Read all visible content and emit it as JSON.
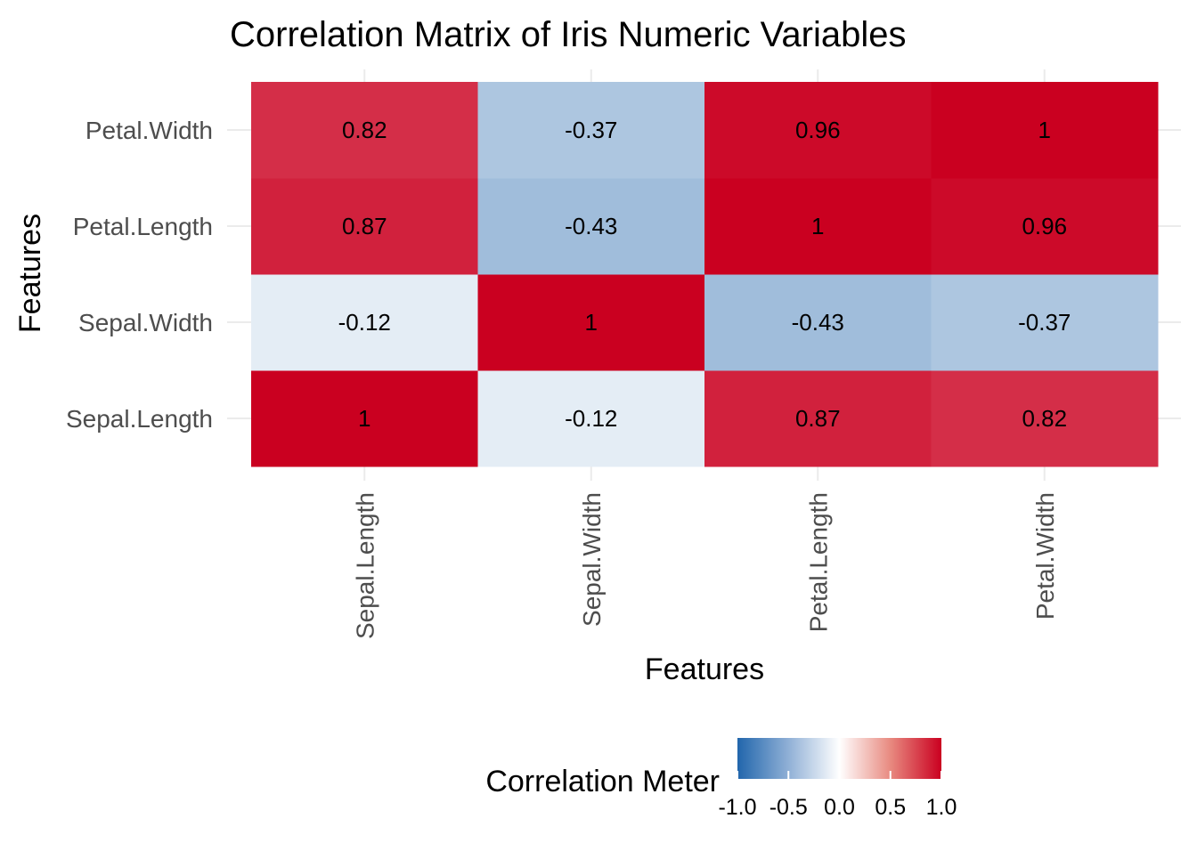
{
  "chart_data": {
    "type": "heatmap",
    "title": "Correlation Matrix of Iris Numeric Variables",
    "xlabel": "Features",
    "ylabel": "Features",
    "x_categories": [
      "Sepal.Length",
      "Sepal.Width",
      "Petal.Length",
      "Petal.Width"
    ],
    "y_categories": [
      "Sepal.Length",
      "Sepal.Width",
      "Petal.Length",
      "Petal.Width"
    ],
    "matrix": [
      [
        1,
        -0.12,
        0.87,
        0.82
      ],
      [
        -0.12,
        1,
        -0.43,
        -0.37
      ],
      [
        0.87,
        -0.43,
        1,
        0.96
      ],
      [
        0.82,
        -0.37,
        0.96,
        1
      ]
    ],
    "cell_labels": [
      [
        "1",
        "-0.12",
        "0.87",
        "0.82"
      ],
      [
        "-0.12",
        "1",
        "-0.43",
        "-0.37"
      ],
      [
        "0.87",
        "-0.43",
        "1",
        "0.96"
      ],
      [
        "0.82",
        "-0.37",
        "0.96",
        "1"
      ]
    ],
    "legend": {
      "title": "Correlation Meter",
      "position": "bottom",
      "range": [
        -1,
        1
      ],
      "ticks": [
        -1.0,
        -0.5,
        0.0,
        0.5,
        1.0
      ],
      "tick_labels": [
        "-1.0",
        "-0.5",
        "0.0",
        "0.5",
        "1.0"
      ]
    },
    "color_scale": {
      "low": "#2166ac",
      "mid": "#ffffff",
      "high": "#ca0020"
    },
    "grid": true
  }
}
